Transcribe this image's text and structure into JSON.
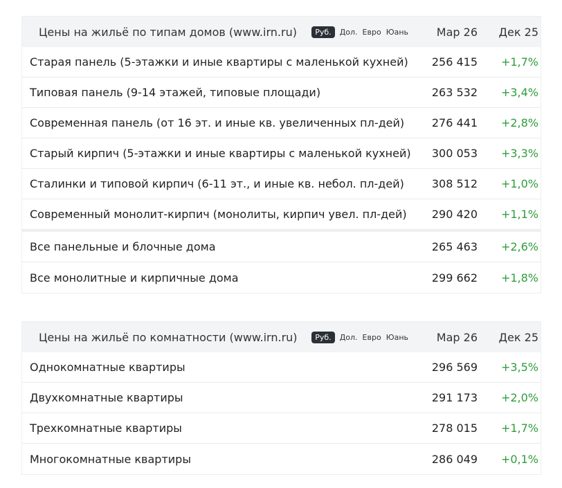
{
  "tables": [
    {
      "title": "Цены на жильё по типам домов (www.irn.ru)",
      "currencies": [
        "Руб.",
        "Дол.",
        "Евро",
        "Юань"
      ],
      "active_currency": "Руб.",
      "col_value": "Мар 26",
      "col_change": "Дек 25",
      "rows": [
        {
          "name": "Старая панель (5-этажки и иные квартиры с маленькой кухней)",
          "value": "256 415",
          "change": "+1,7%"
        },
        {
          "name": "Типовая панель (9-14 этажей, типовые площади)",
          "value": "263 532",
          "change": "+3,4%"
        },
        {
          "name": "Современная панель (от 16 эт. и иные кв. увеличенных пл-дей)",
          "value": "276 441",
          "change": "+2,8%"
        },
        {
          "name": "Старый кирпич (5-этажки и иные квартиры с маленькой кухней)",
          "value": "300 053",
          "change": "+3,3%"
        },
        {
          "name": "Сталинки и типовой кирпич (6-11 эт., и иные кв. небол. пл-дей)",
          "value": "308 512",
          "change": "+1,0%"
        },
        {
          "name": "Современный монолит-кирпич (монолиты, кирпич увел. пл-дей)",
          "value": "290 420",
          "change": "+1,1%"
        },
        {
          "name": "Все панельные и блочные дома",
          "value": "265 463",
          "change": "+2,6%"
        },
        {
          "name": "Все монолитные и кирпичные дома",
          "value": "299 662",
          "change": "+1,8%"
        }
      ]
    },
    {
      "title": "Цены на жильё по комнатности (www.irn.ru)",
      "currencies": [
        "Руб.",
        "Дол.",
        "Евро",
        "Юань"
      ],
      "active_currency": "Руб.",
      "col_value": "Мар 26",
      "col_change": "Дек 25",
      "rows": [
        {
          "name": "Однокомнатные квартиры",
          "value": "296 569",
          "change": "+3,5%"
        },
        {
          "name": "Двухкомнатные квартиры",
          "value": "291 173",
          "change": "+2,0%"
        },
        {
          "name": "Трехкомнатные квартиры",
          "value": "278 015",
          "change": "+1,7%"
        },
        {
          "name": "Многокомнатные квартиры",
          "value": "286 049",
          "change": "+0,1%"
        }
      ]
    }
  ],
  "colors": {
    "positive": "#2e9d3a",
    "header_bg": "#f3f4f6",
    "active_currency_bg": "#2b2f36"
  }
}
